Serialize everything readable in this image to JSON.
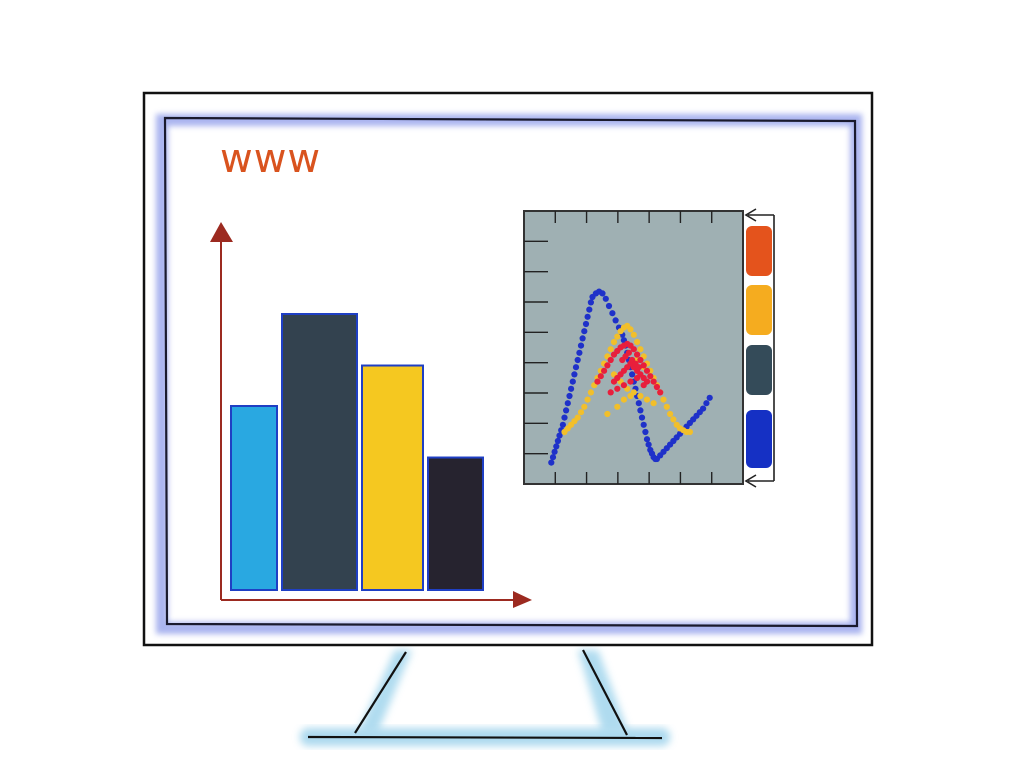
{
  "screen": {
    "url_text": "www"
  },
  "colors": {
    "frame": "#111111",
    "screen_glow": "#8e9bea",
    "url_text": "#d9531e",
    "axis": "#9c2a20",
    "bar_outline": "#1f3fc4",
    "scatter_bg": "#9fb0b3",
    "stand_glow": "#9fd3ec"
  },
  "bar_chart": {
    "values": [
      5,
      7.5,
      6.1,
      3.6
    ],
    "colors": [
      "#29a8e1",
      "#33424f",
      "#f5c820",
      "#26232f"
    ],
    "ylim": [
      0,
      10
    ]
  },
  "scatter_chart": {
    "series": [
      {
        "color": "#1f31c9",
        "points": [
          [
            2,
            3
          ],
          [
            3,
            6
          ],
          [
            4,
            9
          ],
          [
            5,
            12
          ],
          [
            6,
            15
          ],
          [
            7,
            18
          ],
          [
            8,
            21
          ],
          [
            9,
            24
          ],
          [
            10,
            28
          ],
          [
            11,
            32
          ],
          [
            12,
            36
          ],
          [
            13,
            40
          ],
          [
            14,
            44
          ],
          [
            15,
            48
          ],
          [
            16,
            52
          ],
          [
            17,
            56
          ],
          [
            18,
            60
          ],
          [
            19,
            64
          ],
          [
            20,
            68
          ],
          [
            21,
            72
          ],
          [
            22,
            76
          ],
          [
            23,
            80
          ],
          [
            24,
            84
          ],
          [
            25,
            88
          ],
          [
            26,
            92
          ],
          [
            27,
            95
          ],
          [
            29,
            97
          ],
          [
            31,
            98
          ],
          [
            33,
            97
          ],
          [
            35,
            94
          ],
          [
            37,
            90
          ],
          [
            39,
            86
          ],
          [
            41,
            82
          ],
          [
            43,
            78
          ],
          [
            45,
            74
          ],
          [
            46,
            71
          ],
          [
            47,
            68
          ],
          [
            48,
            64
          ],
          [
            49,
            60
          ],
          [
            50,
            56
          ],
          [
            51,
            52
          ],
          [
            52,
            48
          ],
          [
            53,
            44
          ],
          [
            54,
            40
          ],
          [
            55,
            36
          ],
          [
            56,
            32
          ],
          [
            57,
            28
          ],
          [
            58,
            24
          ],
          [
            59,
            20
          ],
          [
            60,
            16
          ],
          [
            61,
            13
          ],
          [
            62,
            10
          ],
          [
            63,
            8
          ],
          [
            64,
            6
          ],
          [
            65,
            5
          ],
          [
            66,
            5
          ],
          [
            68,
            7
          ],
          [
            70,
            9
          ],
          [
            72,
            11
          ],
          [
            74,
            13
          ],
          [
            76,
            15
          ],
          [
            78,
            17
          ],
          [
            80,
            19
          ],
          [
            82,
            21
          ],
          [
            84,
            23
          ],
          [
            86,
            25
          ],
          [
            88,
            27
          ],
          [
            90,
            29
          ],
          [
            92,
            31
          ],
          [
            94,
            33
          ],
          [
            96,
            36
          ],
          [
            98,
            39
          ]
        ]
      },
      {
        "color": "#f2bf2a",
        "points": [
          [
            10,
            20
          ],
          [
            12,
            22
          ],
          [
            14,
            24
          ],
          [
            16,
            26
          ],
          [
            18,
            28
          ],
          [
            20,
            31
          ],
          [
            22,
            34
          ],
          [
            24,
            38
          ],
          [
            26,
            42
          ],
          [
            28,
            46
          ],
          [
            30,
            50
          ],
          [
            32,
            54
          ],
          [
            34,
            58
          ],
          [
            36,
            62
          ],
          [
            38,
            66
          ],
          [
            40,
            70
          ],
          [
            42,
            73
          ],
          [
            44,
            76
          ],
          [
            46,
            78
          ],
          [
            48,
            79
          ],
          [
            50,
            77
          ],
          [
            52,
            74
          ],
          [
            54,
            70
          ],
          [
            56,
            66
          ],
          [
            58,
            62
          ],
          [
            60,
            58
          ],
          [
            62,
            54
          ],
          [
            64,
            50
          ],
          [
            66,
            46
          ],
          [
            68,
            42
          ],
          [
            70,
            38
          ],
          [
            72,
            34
          ],
          [
            74,
            30
          ],
          [
            76,
            27
          ],
          [
            78,
            24
          ],
          [
            80,
            22
          ],
          [
            82,
            21
          ],
          [
            84,
            20
          ],
          [
            86,
            20
          ],
          [
            40,
            52
          ],
          [
            44,
            48
          ],
          [
            48,
            44
          ],
          [
            52,
            42
          ],
          [
            56,
            40
          ],
          [
            60,
            38
          ],
          [
            64,
            36
          ],
          [
            36,
            30
          ],
          [
            42,
            34
          ],
          [
            46,
            38
          ],
          [
            50,
            40
          ],
          [
            54,
            60
          ],
          [
            58,
            56
          ]
        ]
      },
      {
        "color": "#e81f3c",
        "points": [
          [
            30,
            48
          ],
          [
            32,
            51
          ],
          [
            34,
            54
          ],
          [
            36,
            57
          ],
          [
            38,
            60
          ],
          [
            40,
            63
          ],
          [
            42,
            65
          ],
          [
            44,
            67
          ],
          [
            46,
            68
          ],
          [
            48,
            69
          ],
          [
            50,
            68
          ],
          [
            52,
            66
          ],
          [
            54,
            63
          ],
          [
            56,
            60
          ],
          [
            58,
            57
          ],
          [
            60,
            54
          ],
          [
            62,
            51
          ],
          [
            64,
            48
          ],
          [
            66,
            45
          ],
          [
            68,
            42
          ],
          [
            40,
            48
          ],
          [
            42,
            50
          ],
          [
            44,
            52
          ],
          [
            46,
            54
          ],
          [
            48,
            56
          ],
          [
            50,
            58
          ],
          [
            52,
            56
          ],
          [
            54,
            54
          ],
          [
            56,
            52
          ],
          [
            58,
            50
          ],
          [
            60,
            48
          ],
          [
            45,
            60
          ],
          [
            47,
            62
          ],
          [
            49,
            64
          ],
          [
            51,
            60
          ],
          [
            53,
            58
          ],
          [
            55,
            56
          ],
          [
            38,
            42
          ],
          [
            42,
            44
          ],
          [
            46,
            46
          ],
          [
            50,
            48
          ],
          [
            54,
            50
          ],
          [
            58,
            46
          ]
        ]
      }
    ],
    "legend_colors": [
      "#e4531c",
      "#f5ac1f",
      "#344b59",
      "#1530c4"
    ]
  }
}
